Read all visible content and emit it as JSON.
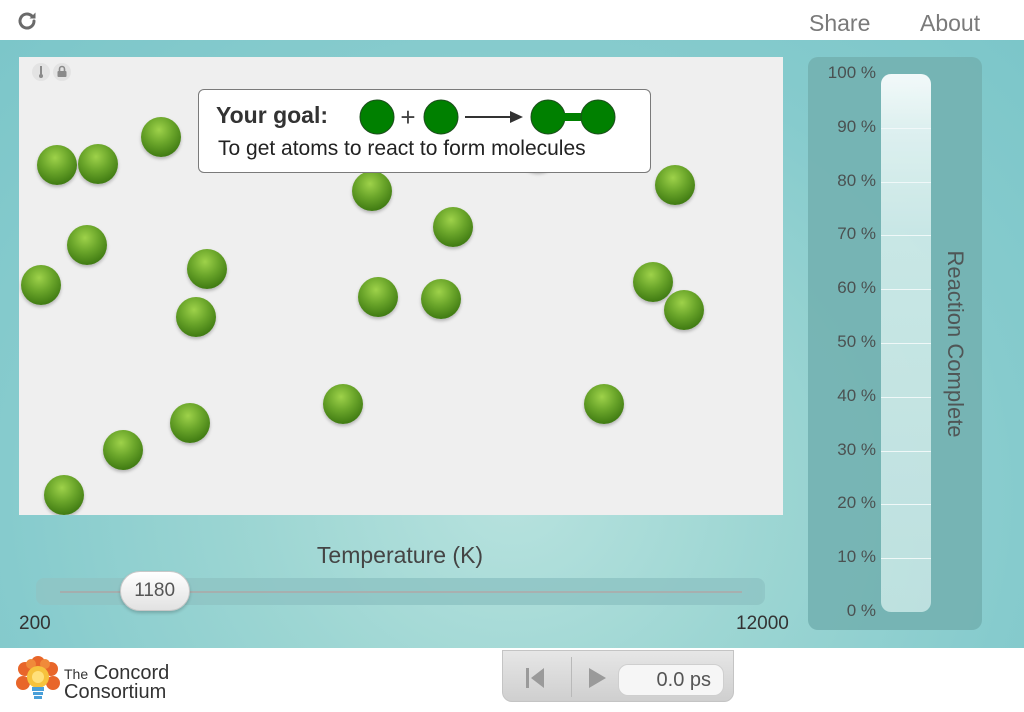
{
  "header": {
    "share_label": "Share",
    "about_label": "About"
  },
  "goal": {
    "title": "Your goal:",
    "description": "To get atoms to react to form molecules",
    "plus": "+"
  },
  "temperature": {
    "label": "Temperature (K)",
    "value": "1180",
    "min": "200",
    "max": "12000"
  },
  "reaction": {
    "title": "Reaction Complete",
    "percent_complete": 0,
    "ticks": [
      "100 %",
      "90 %",
      "80 %",
      "70 %",
      "60 %",
      "50 %",
      "40 %",
      "30 %",
      "20 %",
      "10 %",
      "0 %"
    ]
  },
  "playback": {
    "time": "0.0 ps"
  },
  "logo": {
    "line1_small": "The",
    "line1": "Concord",
    "line2": "Consortium"
  },
  "colors": {
    "atom": "#5a9a1e",
    "goal_atom": "#008000",
    "teal_bg": "#86cbcd"
  }
}
